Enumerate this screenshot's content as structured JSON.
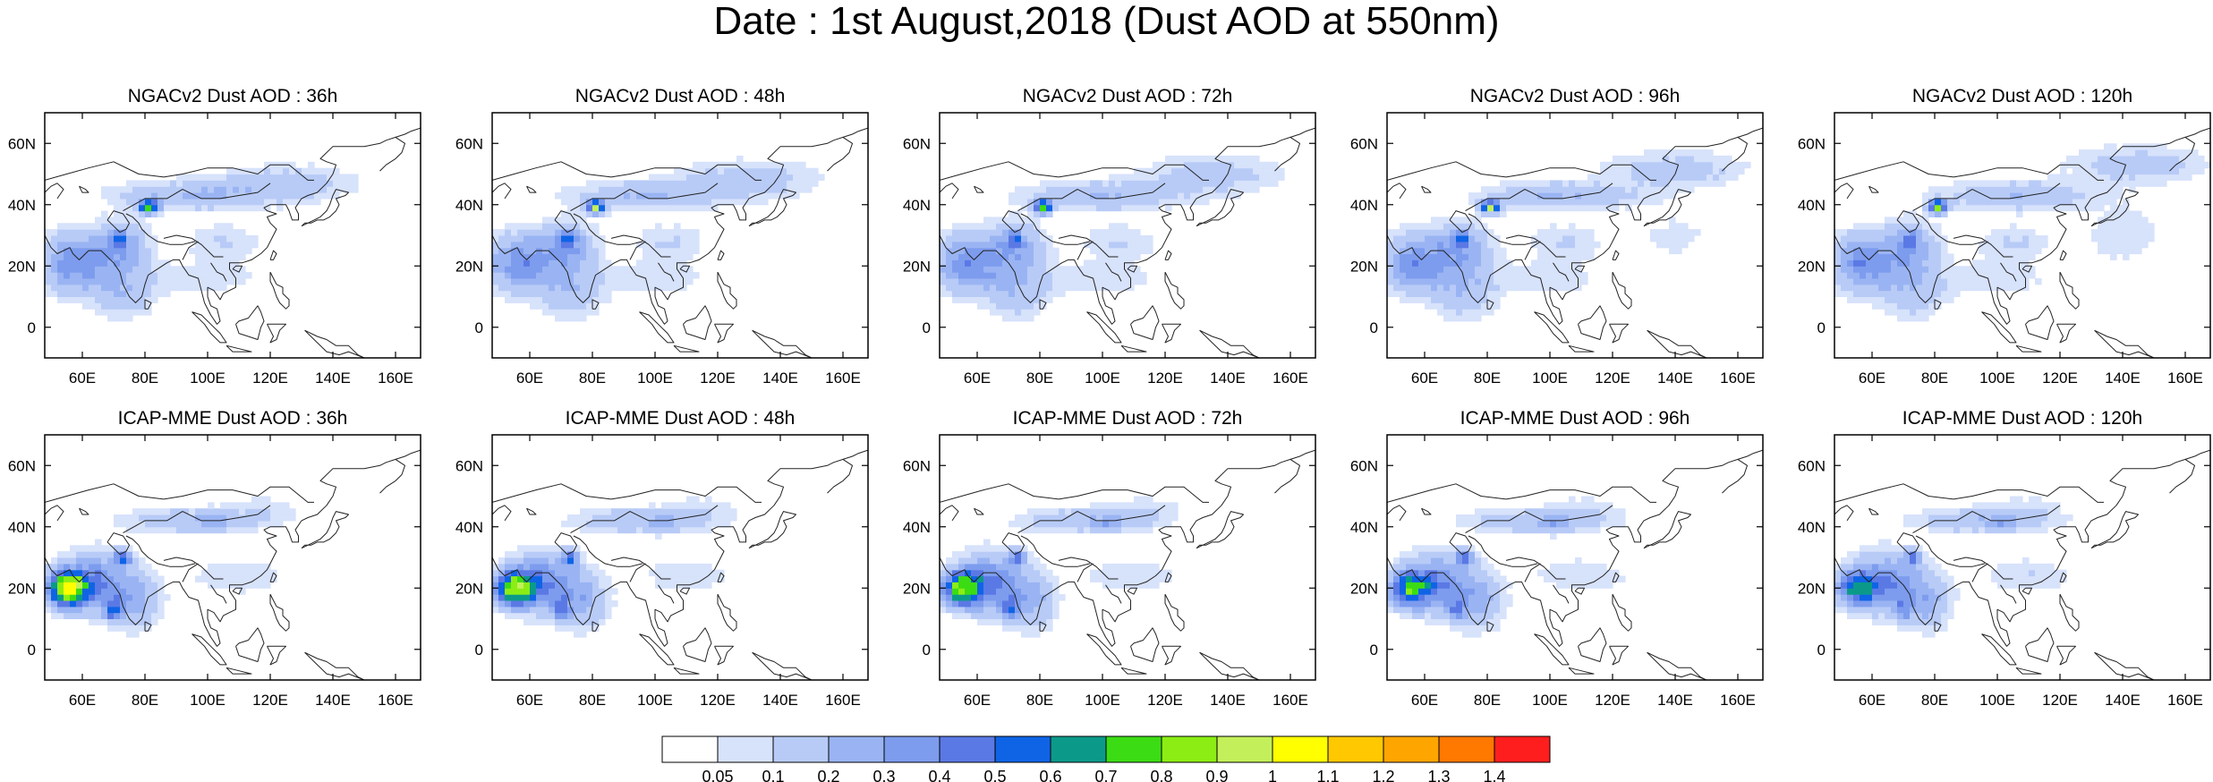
{
  "page_title": "Date : 1st August,2018 (Dust AOD at 550nm)",
  "axis_ticks": {
    "lon": [
      "60E",
      "80E",
      "100E",
      "120E",
      "140E",
      "160E"
    ],
    "lat": [
      "60N",
      "40N",
      "20N",
      "0"
    ]
  },
  "panels": [
    {
      "title": "NGACv2 Dust AOD : 36h",
      "model": "NGACv2",
      "lead_hours": 36
    },
    {
      "title": "NGACv2 Dust AOD : 48h",
      "model": "NGACv2",
      "lead_hours": 48
    },
    {
      "title": "NGACv2 Dust AOD : 72h",
      "model": "NGACv2",
      "lead_hours": 72
    },
    {
      "title": "NGACv2 Dust AOD : 96h",
      "model": "NGACv2",
      "lead_hours": 96
    },
    {
      "title": "NGACv2 Dust AOD : 120h",
      "model": "NGACv2",
      "lead_hours": 120
    },
    {
      "title": "ICAP-MME Dust AOD : 36h",
      "model": "ICAP-MME",
      "lead_hours": 36
    },
    {
      "title": "ICAP-MME Dust AOD : 48h",
      "model": "ICAP-MME",
      "lead_hours": 48
    },
    {
      "title": "ICAP-MME Dust AOD : 72h",
      "model": "ICAP-MME",
      "lead_hours": 72
    },
    {
      "title": "ICAP-MME Dust AOD : 96h",
      "model": "ICAP-MME",
      "lead_hours": 96
    },
    {
      "title": "ICAP-MME Dust AOD : 120h",
      "model": "ICAP-MME",
      "lead_hours": 120
    }
  ],
  "colorbar": {
    "labels": [
      "0.05",
      "0.1",
      "0.2",
      "0.3",
      "0.4",
      "0.5",
      "0.6",
      "0.7",
      "0.8",
      "0.9",
      "1",
      "1.1",
      "1.2",
      "1.3",
      "1.4"
    ],
    "colors": [
      "#ffffff",
      "#d7e2fb",
      "#b8cbf7",
      "#9ab4f3",
      "#7d9cee",
      "#5b79e4",
      "#0f64e6",
      "#0b9a8a",
      "#3cdc14",
      "#8ced14",
      "#c3f05a",
      "#ffff00",
      "#ffc800",
      "#ffa500",
      "#ff7800",
      "#ff1e1e"
    ]
  }
}
